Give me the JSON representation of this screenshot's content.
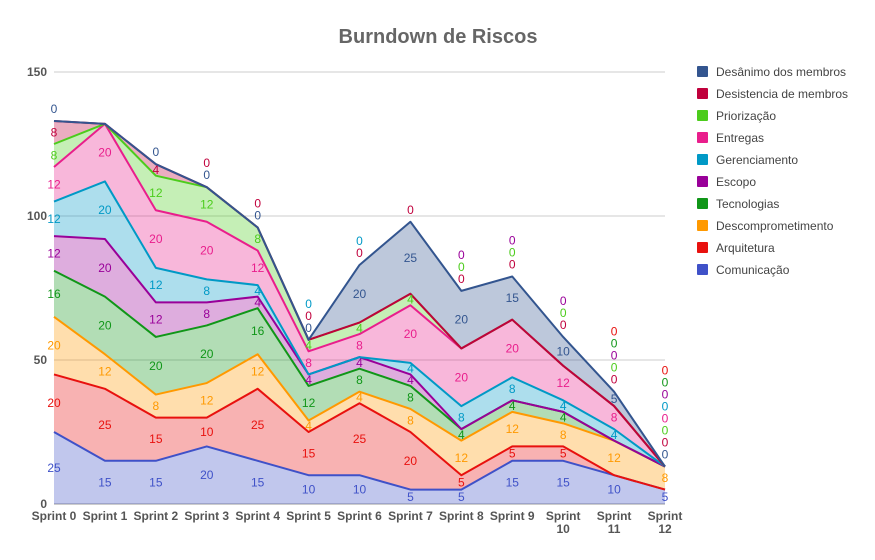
{
  "chart_data": {
    "type": "area",
    "title": "Burndown de Riscos",
    "stacked": true,
    "categories": [
      "Sprint 0",
      "Sprint 1",
      "Sprint 2",
      "Sprint 3",
      "Sprint 4",
      "Sprint 5",
      "Sprint 6",
      "Sprint 7",
      "Sprint 8",
      "Sprint 9",
      "Sprint 10",
      "Sprint 11",
      "Sprint 12"
    ],
    "ylim": [
      0,
      150
    ],
    "yticks": [
      0,
      50,
      100,
      150
    ],
    "grid": true,
    "legend_position": "right",
    "series": [
      {
        "name": "Comunicação",
        "color": "#3f51c8",
        "values": [
          25,
          15,
          15,
          20,
          15,
          10,
          10,
          5,
          5,
          15,
          15,
          10,
          5
        ]
      },
      {
        "name": "Arquitetura",
        "color": "#e8110e",
        "values": [
          20,
          25,
          15,
          10,
          25,
          15,
          25,
          20,
          5,
          5,
          5,
          0,
          0
        ]
      },
      {
        "name": "Descomprometimento",
        "color": "#ff9900",
        "values": [
          20,
          12,
          8,
          12,
          12,
          4,
          4,
          8,
          12,
          12,
          8,
          12,
          8
        ]
      },
      {
        "name": "Tecnologias",
        "color": "#109618",
        "values": [
          16,
          20,
          20,
          20,
          16,
          12,
          8,
          8,
          4,
          4,
          4,
          0,
          0
        ]
      },
      {
        "name": "Escopo",
        "color": "#990099",
        "values": [
          12,
          20,
          12,
          8,
          4,
          4,
          4,
          4,
          0,
          0,
          0,
          0,
          0
        ]
      },
      {
        "name": "Gerenciamento",
        "color": "#0099c6",
        "values": [
          12,
          20,
          12,
          8,
          4,
          0,
          0,
          4,
          8,
          8,
          4,
          4,
          0
        ]
      },
      {
        "name": "Entregas",
        "color": "#e91e8c",
        "values": [
          12,
          20,
          20,
          20,
          12,
          8,
          8,
          20,
          20,
          20,
          12,
          8,
          0
        ]
      },
      {
        "name": "Priorização",
        "color": "#4ccc1c",
        "values": [
          8,
          0,
          12,
          12,
          8,
          4,
          4,
          4,
          0,
          0,
          0,
          0,
          0
        ]
      },
      {
        "name": "Desistencia de membros",
        "color": "#c0003c",
        "values": [
          8,
          0,
          4,
          0,
          0,
          0,
          0,
          0,
          0,
          0,
          0,
          0,
          0
        ]
      },
      {
        "name": "Desânimo dos membros",
        "color": "#33558f",
        "values": [
          0,
          0,
          0,
          0,
          0,
          0,
          20,
          25,
          20,
          15,
          10,
          5,
          0
        ]
      }
    ],
    "labels": [
      {
        "series": 0,
        "points": [
          0,
          1,
          2,
          3,
          4,
          5,
          6,
          7,
          8,
          9,
          10,
          11,
          12
        ]
      },
      {
        "series": 1,
        "points": [
          0,
          1,
          2,
          3,
          4,
          5,
          6,
          7,
          8,
          9,
          10,
          11,
          12
        ]
      },
      {
        "series": 2,
        "points": [
          0,
          1,
          2,
          3,
          4,
          5,
          6,
          7,
          8,
          9,
          10,
          11,
          12
        ]
      },
      {
        "series": 3,
        "points": [
          0,
          1,
          2,
          3,
          4,
          5,
          6,
          7,
          8,
          9,
          10,
          11,
          12
        ]
      },
      {
        "series": 4,
        "points": [
          0,
          1,
          2,
          3,
          4,
          5,
          6,
          7,
          8,
          9,
          10,
          11,
          12
        ]
      },
      {
        "series": 5,
        "points": [
          0,
          1,
          2,
          3,
          4,
          5,
          6,
          7,
          8,
          9,
          10,
          11,
          12
        ]
      },
      {
        "series": 6,
        "points": [
          0,
          1,
          2,
          3,
          4,
          5,
          6,
          7,
          8,
          9,
          10,
          11,
          12
        ]
      },
      {
        "series": 7,
        "points": [
          0,
          2,
          3,
          4,
          5,
          6,
          7,
          8,
          9,
          10,
          11,
          12
        ]
      },
      {
        "series": 8,
        "points": [
          0,
          2,
          3,
          4,
          5,
          6,
          7,
          8,
          9,
          10,
          11,
          12
        ]
      },
      {
        "series": 9,
        "points": [
          0,
          2,
          3,
          4,
          5,
          6,
          7,
          8,
          9,
          10,
          11,
          12
        ]
      }
    ]
  }
}
